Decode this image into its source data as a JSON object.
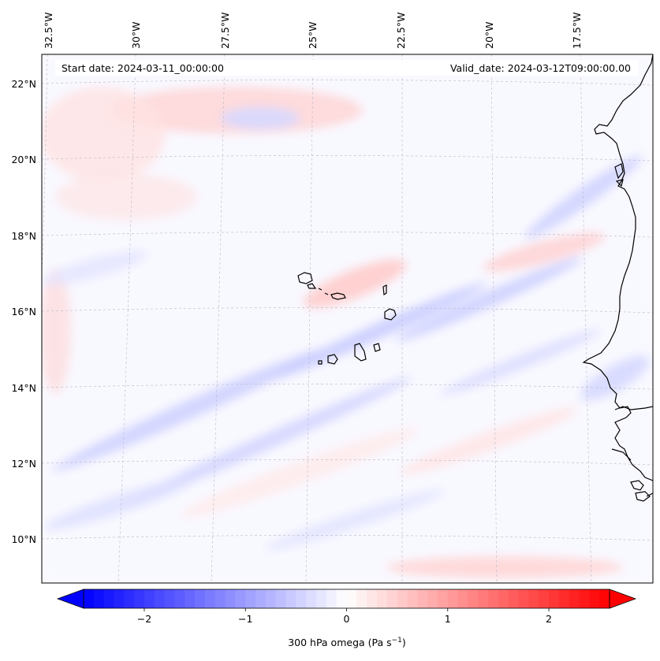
{
  "header": {
    "start_date": "Start date: 2024-03-11_00:00:00",
    "valid_date": "Valid_date: 2024-03-12T09:00:00.00"
  },
  "map": {
    "projection": "lambert-conformal",
    "lon_labels": [
      "32.5°W",
      "30°W",
      "27.5°W",
      "25°W",
      "22.5°W",
      "20°W",
      "17.5°W"
    ],
    "lat_labels": [
      "22°N",
      "20°N",
      "18°N",
      "16°N",
      "14°N",
      "12°N",
      "10°N"
    ],
    "gridlines": "dashed",
    "field": "300 hPa omega",
    "features": [
      "coastline",
      "cape-verde-islands",
      "west-african-coast"
    ]
  },
  "colorbar": {
    "label_main": "300 hPa omega (Pa s",
    "label_sup": "−1",
    "label_end": ")",
    "cmap": "bwr",
    "vmin": -2.6,
    "vmax": 2.6,
    "ticks": [
      {
        "value": -2,
        "label": "−2"
      },
      {
        "value": -1,
        "label": "−1"
      },
      {
        "value": 0,
        "label": "0"
      },
      {
        "value": 1,
        "label": "1"
      },
      {
        "value": 2,
        "label": "2"
      }
    ],
    "colors": {
      "min": "#0000ff",
      "mid": "#ffffff",
      "max": "#ff0000"
    }
  }
}
